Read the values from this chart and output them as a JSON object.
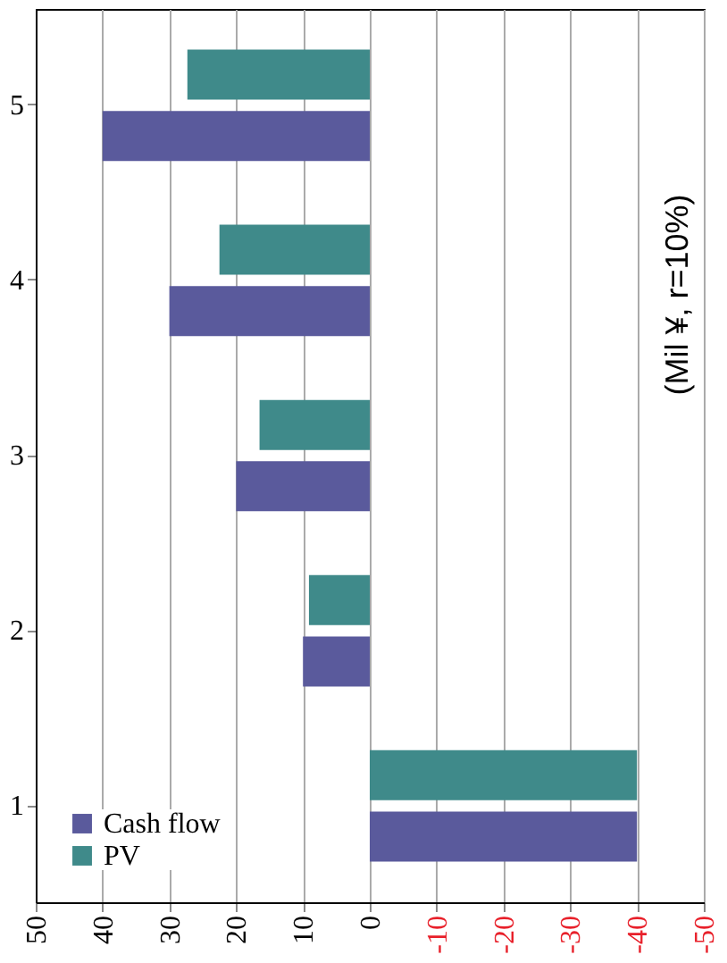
{
  "chart_data": {
    "type": "bar",
    "orientation": "horizontal",
    "categories": [
      "5",
      "4",
      "3",
      "2",
      "1"
    ],
    "series": [
      {
        "name": "Cash flow",
        "color": "#5a5a9c",
        "values": [
          40,
          30,
          20,
          10,
          -40
        ]
      },
      {
        "name": "PV",
        "color": "#3f8a8a",
        "values": [
          27.3,
          22.5,
          16.5,
          9.1,
          -40
        ]
      }
    ],
    "xlim": [
      50,
      -50
    ],
    "xticks": [
      50,
      40,
      30,
      20,
      10,
      0,
      -10,
      -20,
      -30,
      -40,
      -50
    ],
    "grid": "x",
    "legend": "bottom left",
    "annotations": [
      "(Mil ¥, r=10%)"
    ]
  }
}
